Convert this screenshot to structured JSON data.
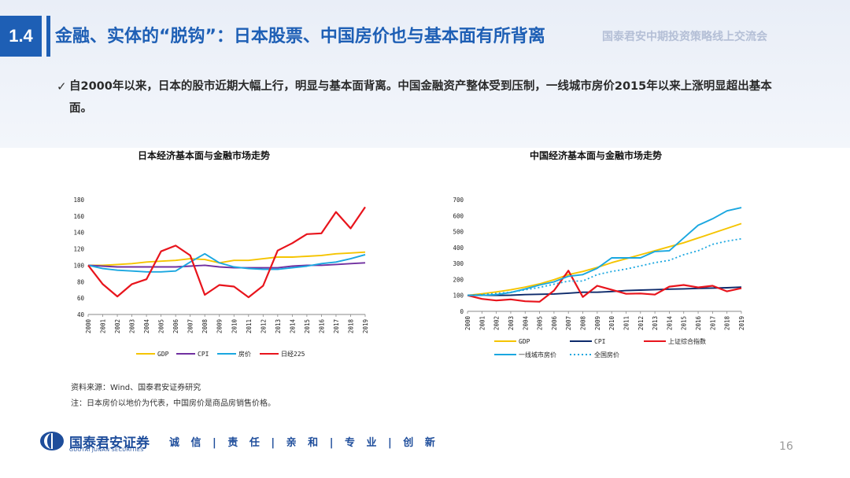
{
  "header": {
    "section_number": "1.4",
    "title": "金融、实体的“脱钩”：日本股票、中国房价也与基本面有所背离",
    "event_name": "国泰君安中期投资策略线上交流会"
  },
  "bullet": {
    "check": "✓",
    "text": "自2000年以来，日本的股市近期大幅上行，明显与基本面背离。中国金融资产整体受到压制，一线城市房价2015年以来上涨明显超出基本面。"
  },
  "chart_titles": {
    "japan": "日本经济基本面与金融市场走势",
    "china": "中国经济基本面与金融市场走势"
  },
  "notes": {
    "source": "资料来源：Wind、国泰君安证券研究",
    "note": "注：日本房价以地价为代表，中国房价是商品房销售价格。"
  },
  "footer": {
    "logo_cn": "国泰君安证券",
    "logo_en": "GUOTAI JUNAN SECURITIES",
    "motto": "诚 信 | 责 任 | 亲 和 | 专 业 | 创 新",
    "page": "16"
  },
  "colors": {
    "brand_blue": "#1e5fb5",
    "gdp": "#f5c400",
    "cpi_japan": "#7030a0",
    "cpi_china": "#0d2a6b",
    "house": "#1aa7e0",
    "stock": "#e8141c",
    "national_house": "#1aa7e0"
  },
  "chart_data": [
    {
      "type": "line",
      "title": "日本经济基本面与金融市场走势",
      "x": [
        "2000",
        "2001",
        "2002",
        "2003",
        "2004",
        "2005",
        "2006",
        "2007",
        "2008",
        "2009",
        "2010",
        "2011",
        "2012",
        "2013",
        "2014",
        "2015",
        "2016",
        "2017",
        "2018",
        "2019"
      ],
      "ylim": [
        40,
        180
      ],
      "yticks": [
        40,
        60,
        80,
        100,
        120,
        140,
        160,
        180
      ],
      "legend_position": "bottom",
      "series": [
        {
          "name": "GDP",
          "color_key": "gdp",
          "values": [
            100,
            100,
            101,
            102,
            104,
            105,
            106,
            108,
            107,
            103,
            106,
            106,
            108,
            110,
            110,
            111,
            112,
            114,
            115,
            116
          ]
        },
        {
          "name": "CPI",
          "color_key": "cpi_japan",
          "values": [
            100,
            99,
            98,
            98,
            98,
            98,
            98,
            99,
            100,
            98,
            97,
            97,
            97,
            97,
            99,
            100,
            100,
            101,
            102,
            103
          ]
        },
        {
          "name": "房价",
          "color_key": "house",
          "values": [
            100,
            96,
            94,
            93,
            92,
            92,
            93,
            104,
            114,
            103,
            98,
            96,
            95,
            95,
            97,
            99,
            102,
            104,
            108,
            113
          ]
        },
        {
          "name": "日经225",
          "color_key": "stock",
          "values": [
            100,
            77,
            62,
            77,
            83,
            117,
            124,
            112,
            64,
            76,
            74,
            61,
            75,
            118,
            127,
            138,
            139,
            165,
            145,
            171
          ]
        }
      ]
    },
    {
      "type": "line",
      "title": "中国经济基本面与金融市场走势",
      "x": [
        "2000",
        "2001",
        "2002",
        "2003",
        "2004",
        "2005",
        "2006",
        "2007",
        "2008",
        "2009",
        "2010",
        "2011",
        "2012",
        "2013",
        "2014",
        "2015",
        "2016",
        "2017",
        "2018",
        "2019"
      ],
      "ylim": [
        0,
        700
      ],
      "yticks": [
        0,
        100,
        200,
        300,
        400,
        500,
        600,
        700
      ],
      "legend_position": "bottom",
      "series": [
        {
          "name": "GDP",
          "color_key": "gdp",
          "values": [
            100,
            110,
            122,
            135,
            152,
            172,
            198,
            230,
            250,
            275,
            305,
            330,
            355,
            380,
            405,
            430,
            460,
            490,
            520,
            550
          ]
        },
        {
          "name": "CPI",
          "color_key": "cpi_china",
          "values": [
            100,
            101,
            100,
            101,
            105,
            107,
            109,
            114,
            120,
            120,
            124,
            130,
            133,
            136,
            139,
            141,
            144,
            146,
            148,
            152
          ]
        },
        {
          "name": "上证综合指数",
          "color_key": "stock",
          "values": [
            100,
            78,
            68,
            75,
            63,
            60,
            130,
            255,
            90,
            160,
            135,
            110,
            112,
            105,
            155,
            165,
            150,
            160,
            125,
            145
          ]
        },
        {
          "name": "一线城市房价",
          "color_key": "house",
          "values": [
            100,
            100,
            105,
            118,
            140,
            165,
            185,
            220,
            230,
            270,
            335,
            335,
            335,
            375,
            380,
            460,
            540,
            580,
            630,
            650
          ]
        },
        {
          "name": "全国房价",
          "color_key": "national_house",
          "dashed": true,
          "values": [
            100,
            105,
            112,
            120,
            135,
            150,
            170,
            190,
            190,
            230,
            250,
            265,
            285,
            305,
            320,
            355,
            380,
            420,
            440,
            455
          ]
        }
      ]
    }
  ]
}
